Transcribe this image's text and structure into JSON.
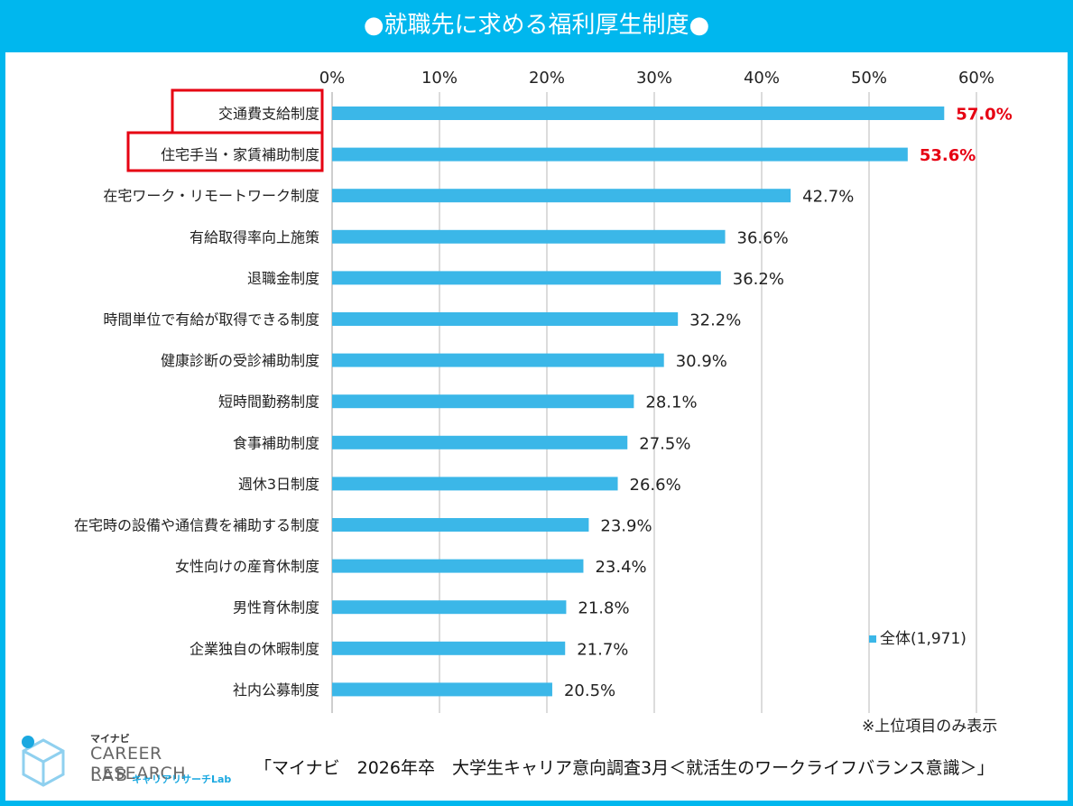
{
  "title": "●就職先に求める福利厚生制度●",
  "note": "※上位項目のみ表示",
  "source": "「マイナビ　2026年卒　大学生キャリア意向調査3月＜就活生のワークライフバランス意識＞」",
  "logo": {
    "small": "マイナビ",
    "main": "CAREER RESEARCH",
    "lab": "LAB",
    "sub": "キャリアリサーチLab"
  },
  "colors": {
    "bar": "#3bb7e8",
    "highlight": "#e60012",
    "frame": "#00b7ee",
    "grid": "#d0d0d0"
  },
  "chart_data": {
    "type": "bar",
    "orientation": "horizontal",
    "categories": [
      "交通費支給制度",
      "住宅手当・家賃補助制度",
      "在宅ワーク・リモートワーク制度",
      "有給取得率向上施策",
      "退職金制度",
      "時間単位で有給が取得できる制度",
      "健康診断の受診補助制度",
      "短時間勤務制度",
      "食事補助制度",
      "週休3日制度",
      "在宅時の設備や通信費を補助する制度",
      "女性向けの産育休制度",
      "男性育休制度",
      "企業独自の休暇制度",
      "社内公募制度"
    ],
    "values": [
      57.0,
      53.6,
      42.7,
      36.6,
      36.2,
      32.2,
      30.9,
      28.1,
      27.5,
      26.6,
      23.9,
      23.4,
      21.8,
      21.7,
      20.5
    ],
    "value_labels": [
      "57.0%",
      "53.6%",
      "42.7%",
      "36.6%",
      "36.2%",
      "32.2%",
      "30.9%",
      "28.1%",
      "27.5%",
      "26.6%",
      "23.9%",
      "23.4%",
      "21.8%",
      "21.7%",
      "20.5%"
    ],
    "highlighted": [
      0,
      1
    ],
    "xlim": [
      0,
      60
    ],
    "xticks": [
      "0%",
      "10%",
      "20%",
      "30%",
      "40%",
      "50%",
      "60%"
    ],
    "xticks_values": [
      0,
      10,
      20,
      30,
      40,
      50,
      60
    ],
    "legend": {
      "label": "全体(1,971)",
      "position": "bottom-right"
    },
    "grid": true
  }
}
